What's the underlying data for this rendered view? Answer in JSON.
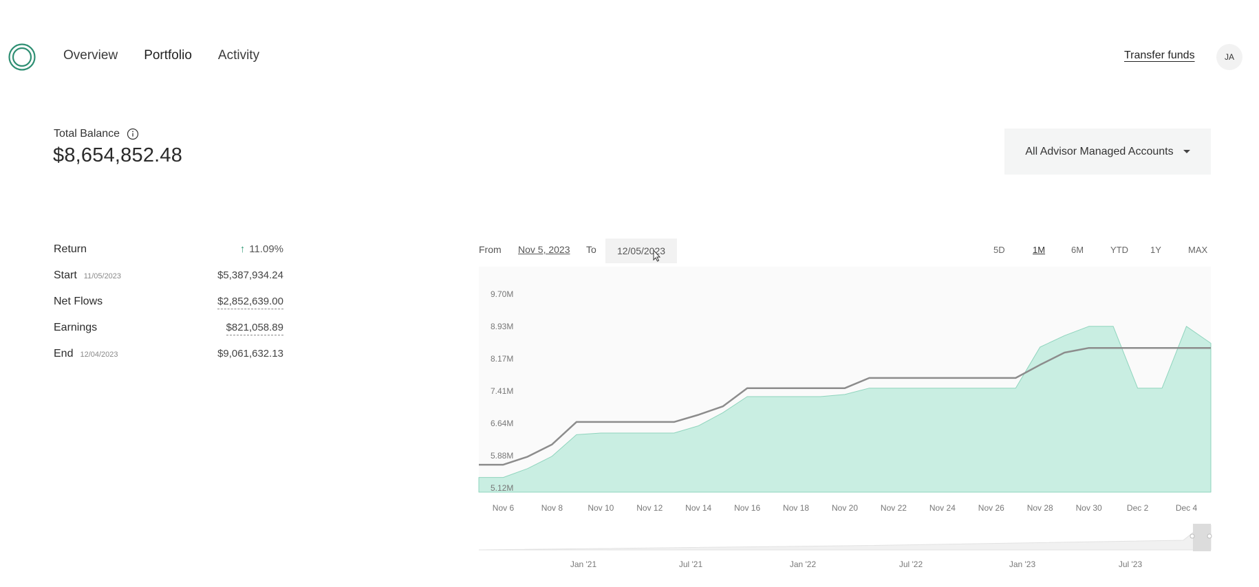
{
  "nav": {
    "items": [
      "Overview",
      "Portfolio",
      "Activity"
    ],
    "active": "Portfolio",
    "transfer_label": "Transfer funds",
    "avatar_initials": "JA",
    "logo_icon": "ring-logo-icon",
    "logo_color": "#2f8f73"
  },
  "balance": {
    "label": "Total Balance",
    "info_icon": "info-icon",
    "value": "$8,654,852.48"
  },
  "account_select": {
    "value": "All Advisor Managed Accounts",
    "icon": "caret-down-icon"
  },
  "returns": {
    "return_label": "Return",
    "return_value": "11.09%",
    "start_label": "Start",
    "start_date": "11/05/2023",
    "start_value": "$5,387,934.24",
    "net_flows_label": "Net Flows",
    "net_flows_value": "$2,852,639.00",
    "earnings_label": "Earnings",
    "earnings_value": "$821,058.89",
    "end_label": "End",
    "end_date": "12/04/2023",
    "end_value": "$9,061,632.13"
  },
  "range": {
    "from_label": "From",
    "from_value": "Nov 5, 2023",
    "to_label": "To",
    "to_value": "12/05/2023",
    "periods": [
      "5D",
      "1M",
      "6M",
      "YTD",
      "1Y",
      "MAX"
    ],
    "selected_period": "1M"
  },
  "colors": {
    "accent": "#2f9a74",
    "area_fill": "#c9eee2",
    "area_stroke": "#8fd4bd",
    "flow_line": "#8c8c8c",
    "plot_bg": "#fafafa"
  },
  "chart_data": {
    "type": "area",
    "x_ticks": [
      "Nov 6",
      "Nov 8",
      "Nov 10",
      "Nov 12",
      "Nov 14",
      "Nov 16",
      "Nov 18",
      "Nov 20",
      "Nov 22",
      "Nov 24",
      "Nov 26",
      "Nov 28",
      "Nov 30",
      "Dec 2",
      "Dec 4"
    ],
    "y_ticks": [
      "9.70M",
      "8.93M",
      "8.17M",
      "7.41M",
      "6.64M",
      "5.88M",
      "5.12M"
    ],
    "ylim": [
      5.12,
      9.7
    ],
    "x_range_days": [
      5,
      35
    ],
    "series": [
      {
        "style": "area",
        "points": [
          [
            5,
            5.37
          ],
          [
            6,
            5.37
          ],
          [
            7,
            5.58
          ],
          [
            8,
            5.87
          ],
          [
            9,
            6.38
          ],
          [
            10,
            6.42
          ],
          [
            11,
            6.42
          ],
          [
            12,
            6.42
          ],
          [
            13,
            6.42
          ],
          [
            14,
            6.59
          ],
          [
            15,
            6.9
          ],
          [
            16,
            7.28
          ],
          [
            17,
            7.28
          ],
          [
            18,
            7.28
          ],
          [
            19,
            7.28
          ],
          [
            20,
            7.33
          ],
          [
            21,
            7.48
          ],
          [
            22,
            7.48
          ],
          [
            23,
            7.48
          ],
          [
            24,
            7.48
          ],
          [
            25,
            7.48
          ],
          [
            26,
            7.48
          ],
          [
            27,
            7.48
          ],
          [
            28,
            8.45
          ],
          [
            29,
            8.72
          ],
          [
            30,
            8.94
          ],
          [
            31,
            8.94
          ],
          [
            32,
            7.48
          ],
          [
            33,
            7.48
          ],
          [
            34,
            8.94
          ],
          [
            35,
            8.54
          ]
        ]
      },
      {
        "style": "line",
        "points": [
          [
            5,
            5.67
          ],
          [
            6,
            5.67
          ],
          [
            7,
            5.86
          ],
          [
            8,
            6.15
          ],
          [
            9,
            6.68
          ],
          [
            10,
            6.68
          ],
          [
            11,
            6.68
          ],
          [
            12,
            6.68
          ],
          [
            13,
            6.68
          ],
          [
            14,
            6.85
          ],
          [
            15,
            7.05
          ],
          [
            16,
            7.48
          ],
          [
            17,
            7.48
          ],
          [
            18,
            7.48
          ],
          [
            19,
            7.48
          ],
          [
            20,
            7.48
          ],
          [
            21,
            7.72
          ],
          [
            22,
            7.72
          ],
          [
            23,
            7.72
          ],
          [
            24,
            7.72
          ],
          [
            25,
            7.72
          ],
          [
            26,
            7.72
          ],
          [
            27,
            7.72
          ],
          [
            28,
            8.03
          ],
          [
            29,
            8.32
          ],
          [
            30,
            8.43
          ],
          [
            31,
            8.43
          ],
          [
            32,
            8.43
          ],
          [
            33,
            8.43
          ],
          [
            34,
            8.43
          ],
          [
            35,
            8.43
          ]
        ]
      }
    ],
    "overview": {
      "x_ticks": [
        "Jan '21",
        "Jul '21",
        "Jan '22",
        "Jul '22",
        "Jan '23",
        "Jul '23"
      ]
    }
  }
}
